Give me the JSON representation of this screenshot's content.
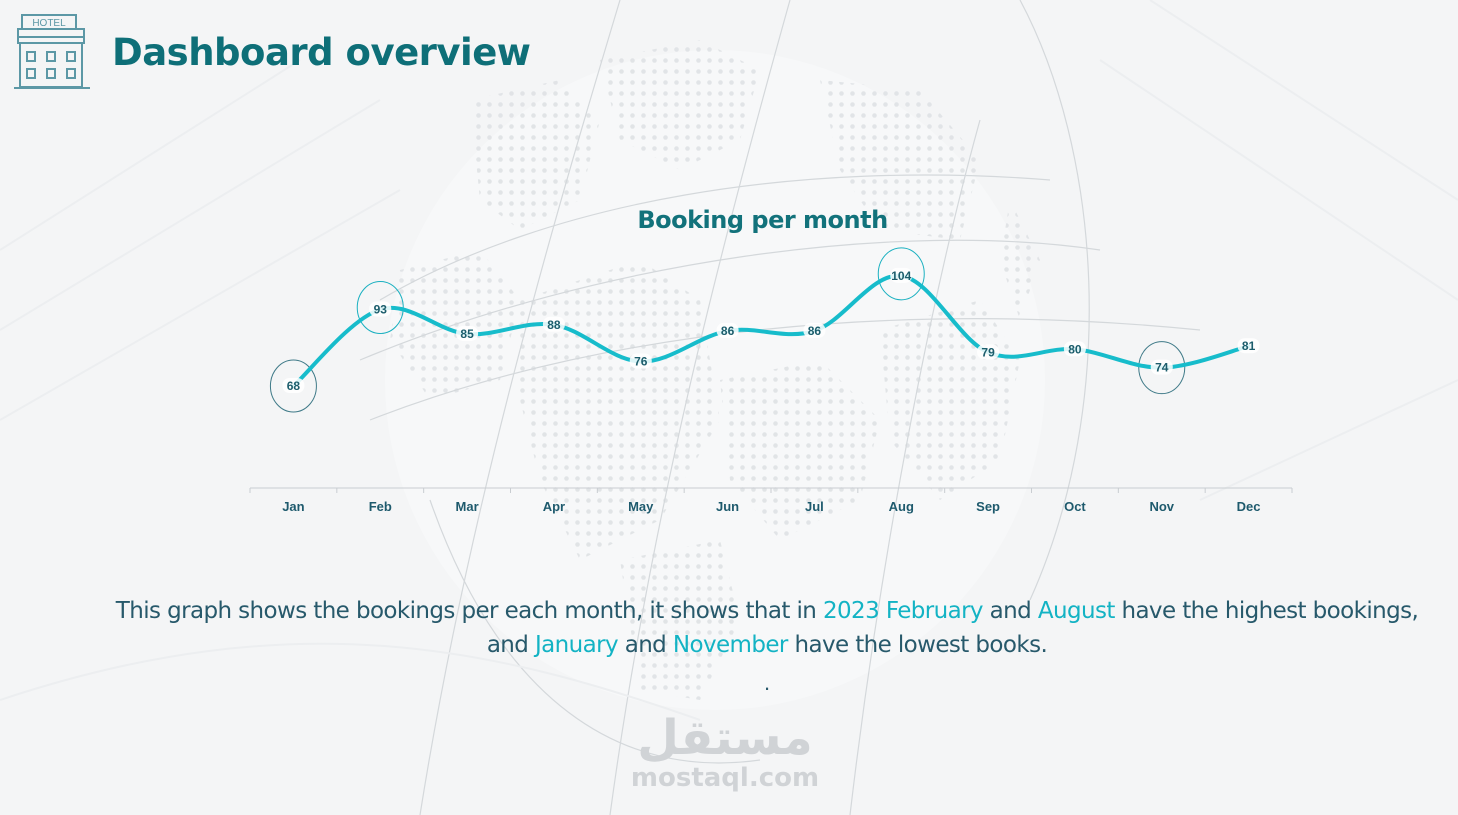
{
  "header": {
    "title": "Dashboard overview",
    "icon": "hotel-building-icon",
    "icon_sign_text": "HOTEL"
  },
  "chart": {
    "title": "Booking per month"
  },
  "description": {
    "part1": "This graph shows the bookings per each month, it shows that in ",
    "hl1": "2023 February",
    "part2": " and ",
    "hl2": "August",
    "part3": " have the highest bookings, and ",
    "hl3": "January",
    "part4": " and ",
    "hl4": "November",
    "part5": " have the lowest books.",
    "trailing": "."
  },
  "watermark": {
    "arabic": "مستقل",
    "latin": "mostaql.com"
  },
  "colors": {
    "title": "#0e6f78",
    "line": "#17bccb",
    "highlight_text": "#13b3c4",
    "body_text": "#27596b",
    "circle_high": "#1ab0c0",
    "circle_low": "#3f7a88"
  },
  "chart_data": {
    "type": "line",
    "title": "Booking per month",
    "xlabel": "",
    "ylabel": "",
    "categories": [
      "Jan",
      "Feb",
      "Mar",
      "Apr",
      "May",
      "Jun",
      "Jul",
      "Aug",
      "Sep",
      "Oct",
      "Nov",
      "Dec"
    ],
    "series": [
      {
        "name": "Bookings",
        "values": [
          68,
          93,
          85,
          88,
          76,
          86,
          86,
          104,
          79,
          80,
          74,
          81
        ]
      }
    ],
    "data_labels": true,
    "highlighted": {
      "highest": [
        "Feb",
        "Aug"
      ],
      "lowest": [
        "Jan",
        "Nov"
      ]
    },
    "grid": false,
    "legend": "none",
    "smooth": true
  }
}
